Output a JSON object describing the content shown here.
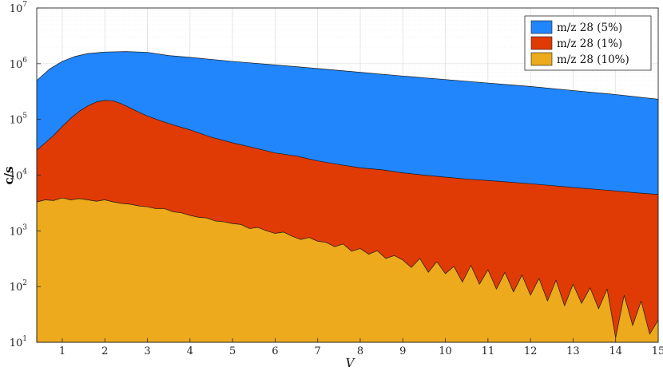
{
  "chart_data": {
    "type": "area",
    "xlabel": "V",
    "ylabel": "c/s",
    "xlim": [
      0.4,
      15
    ],
    "ylim": [
      10,
      10000000
    ],
    "yscale": "log",
    "grid": true,
    "legend_position": "top-right",
    "x_ticks": [
      "1",
      "2",
      "3",
      "4",
      "5",
      "6",
      "7",
      "8",
      "9",
      "10",
      "11",
      "12",
      "13",
      "14",
      "15"
    ],
    "y_ticks": [
      {
        "base": "10",
        "exp": "1"
      },
      {
        "base": "10",
        "exp": "2"
      },
      {
        "base": "10",
        "exp": "3"
      },
      {
        "base": "10",
        "exp": "4"
      },
      {
        "base": "10",
        "exp": "5"
      },
      {
        "base": "10",
        "exp": "6"
      },
      {
        "base": "10",
        "exp": "7"
      }
    ],
    "series": [
      {
        "name": "m/z 28 (5%)",
        "color": "#2185fc",
        "x": [
          0.4,
          0.7,
          1.0,
          1.3,
          1.6,
          2.0,
          2.5,
          3.0,
          3.5,
          4,
          5,
          6,
          7,
          8,
          9,
          10,
          11,
          12,
          13,
          14,
          15
        ],
        "values": [
          500000,
          800000,
          1100000,
          1350000,
          1520000,
          1620000,
          1650000,
          1600000,
          1400000,
          1300000,
          1100000,
          950000,
          820000,
          700000,
          600000,
          520000,
          450000,
          390000,
          330000,
          280000,
          230000
        ]
      },
      {
        "name": "m/z 28 (1%)",
        "color": "#e03a05",
        "x": [
          0.4,
          0.6,
          0.8,
          1.0,
          1.2,
          1.4,
          1.6,
          1.8,
          2.0,
          2.2,
          2.4,
          2.6,
          2.8,
          3.0,
          3.3,
          3.6,
          4.0,
          4.5,
          5.0,
          5.5,
          6.0,
          6.5,
          7.0,
          7.5,
          8.0,
          8.5,
          9.0,
          9.5,
          10.0,
          10.5,
          11.0,
          11.5,
          12.0,
          12.5,
          13.0,
          13.5,
          14.0,
          14.5,
          15.0
        ],
        "values": [
          28000,
          38000,
          52000,
          75000,
          105000,
          140000,
          175000,
          205000,
          220000,
          215000,
          190000,
          160000,
          135000,
          115000,
          95000,
          80000,
          65000,
          48000,
          38000,
          31000,
          25000,
          22000,
          18000,
          15500,
          13500,
          12500,
          11000,
          10000,
          9200,
          8500,
          8000,
          7500,
          7000,
          6500,
          6000,
          5600,
          5200,
          4800,
          4500
        ]
      },
      {
        "name": "m/z 28 (10%)",
        "color": "#ecaa1c",
        "x": [
          0.4,
          0.6,
          0.8,
          1.0,
          1.2,
          1.4,
          1.6,
          1.8,
          2.0,
          2.2,
          2.4,
          2.6,
          2.8,
          3.0,
          3.2,
          3.4,
          3.6,
          3.8,
          4.0,
          4.2,
          4.4,
          4.6,
          4.8,
          5.0,
          5.2,
          5.4,
          5.6,
          5.8,
          6.0,
          6.2,
          6.4,
          6.6,
          6.8,
          7.0,
          7.2,
          7.4,
          7.6,
          7.8,
          8.0,
          8.2,
          8.4,
          8.6,
          8.8,
          9.0,
          9.2,
          9.4,
          9.6,
          9.8,
          10.0,
          10.2,
          10.4,
          10.6,
          10.8,
          11.0,
          11.2,
          11.4,
          11.6,
          11.8,
          12.0,
          12.2,
          12.4,
          12.6,
          12.8,
          13.0,
          13.2,
          13.4,
          13.6,
          13.8,
          14.0,
          14.2,
          14.4,
          14.6,
          14.8,
          15.0
        ],
        "values": [
          3300,
          3600,
          3500,
          3900,
          3600,
          3800,
          3600,
          3400,
          3600,
          3300,
          3100,
          3000,
          2800,
          2700,
          2500,
          2500,
          2200,
          2100,
          1900,
          1750,
          1700,
          1500,
          1450,
          1350,
          1300,
          1100,
          1150,
          1000,
          900,
          950,
          800,
          700,
          760,
          650,
          620,
          520,
          580,
          430,
          480,
          380,
          440,
          320,
          360,
          300,
          220,
          320,
          180,
          280,
          170,
          230,
          120,
          240,
          110,
          200,
          90,
          180,
          80,
          160,
          70,
          140,
          55,
          130,
          45,
          110,
          50,
          95,
          40,
          90,
          12,
          70,
          20,
          55,
          14,
          25
        ]
      }
    ]
  }
}
